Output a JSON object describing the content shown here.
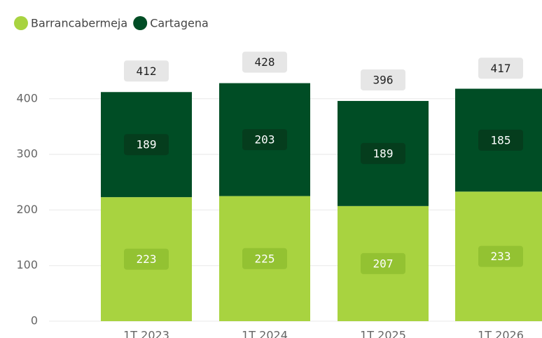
{
  "chart_data": {
    "type": "stacked_bar",
    "categories": [
      "1T 2023",
      "1T 2024",
      "1T 2025",
      "1T 2026"
    ],
    "series": [
      {
        "name": "Barrancabermeja",
        "color": "#a8d340",
        "values": [
          223,
          225,
          207,
          233
        ]
      },
      {
        "name": "Cartagena",
        "color": "#004d25",
        "values": [
          189,
          203,
          189,
          185
        ]
      }
    ],
    "totals": [
      412,
      428,
      396,
      417
    ],
    "ylim": [
      0,
      430
    ],
    "yticks": [
      0,
      100,
      200,
      300,
      400
    ],
    "grid": true
  }
}
